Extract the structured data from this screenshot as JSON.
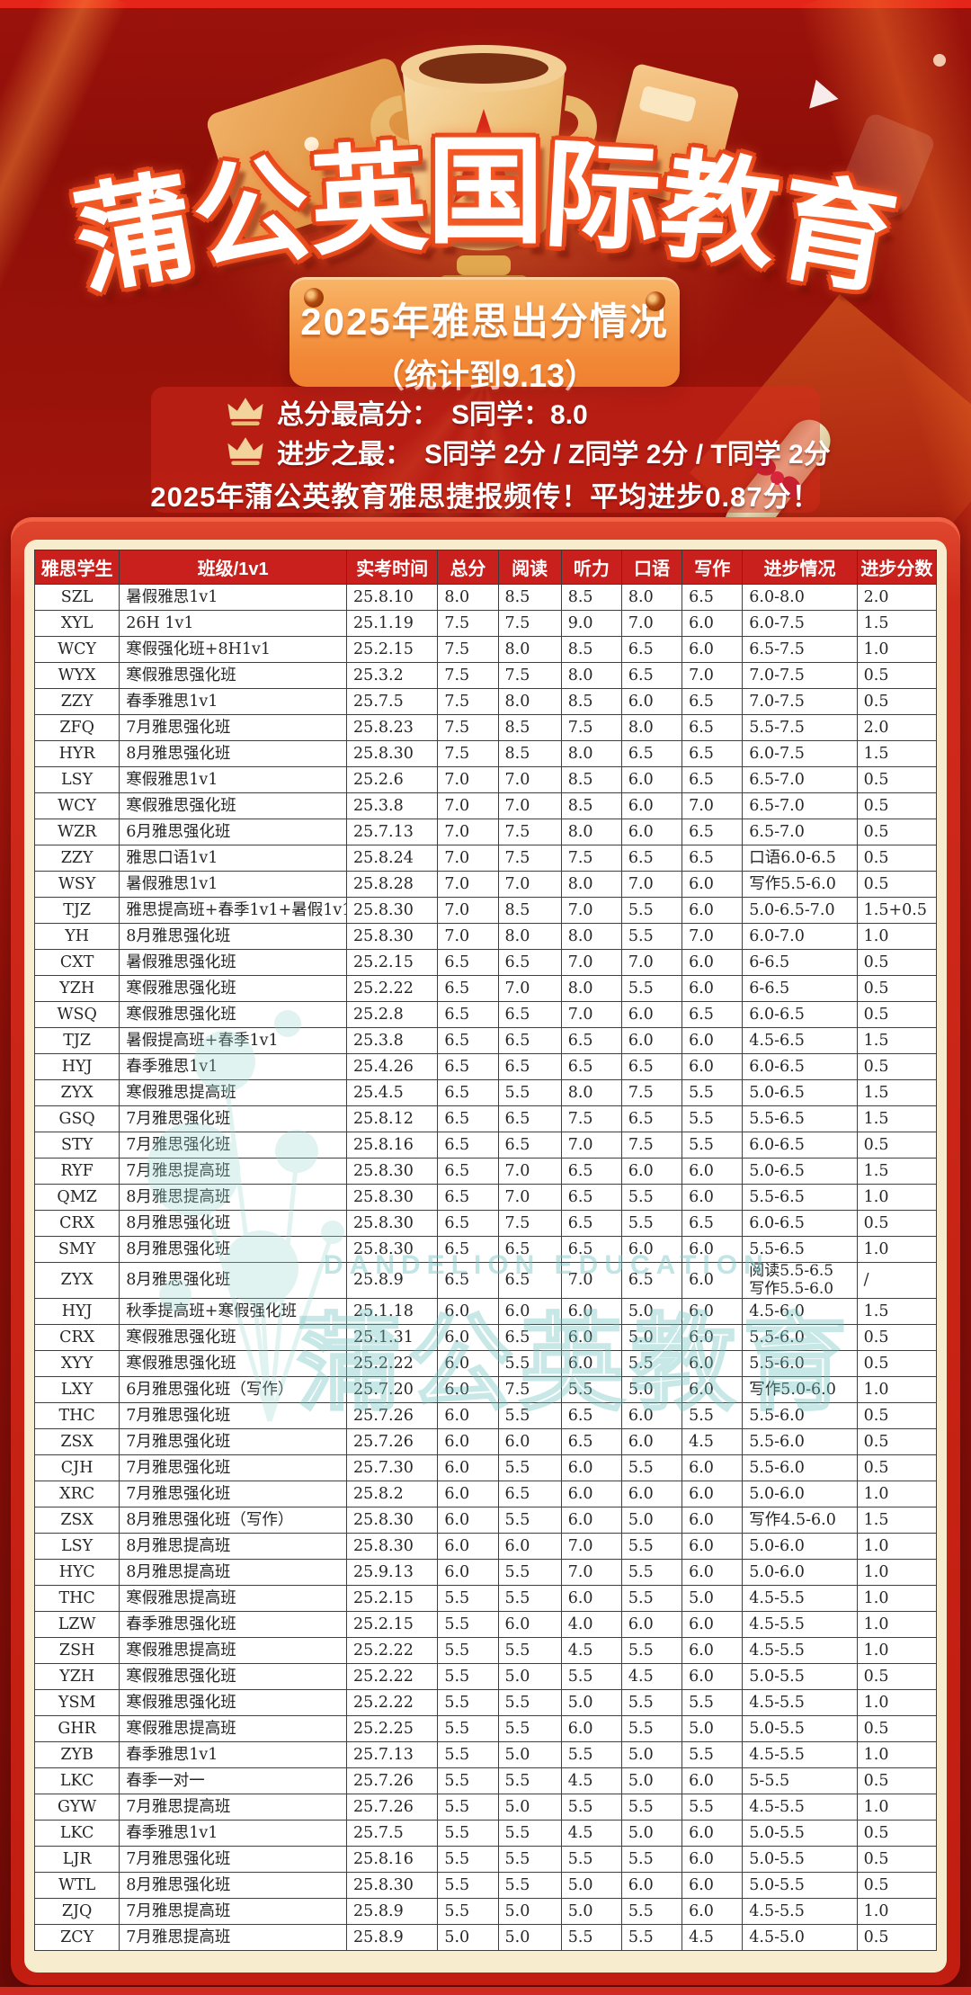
{
  "poster": {
    "brand_title": "蒲公英国际教育",
    "brand_chars": [
      "蒲",
      "公",
      "英",
      "国",
      "际",
      "教",
      "育"
    ],
    "banner": {
      "line1": "2025年雅思出分情况",
      "line2": "（统计到9.13）"
    },
    "highlights": [
      {
        "label": "总分最高分：",
        "value": "S同学：8.0"
      },
      {
        "label": "进步之最：",
        "value": "S同学 2分 / Z同学 2分 / T同学 2分"
      }
    ],
    "summary": "2025年蒲公英教育雅思捷报频传！平均进步0.87分！",
    "watermark": {
      "en": "DANDELION EDUCATION",
      "cn": "蒲公英教育"
    }
  },
  "colors": {
    "background_red": "#9c120c",
    "panel_red": "#c9201d",
    "banner_orange": "#f28a38",
    "card_cream": "#f7ecce",
    "gold": "#f2d39b",
    "watermark_teal": "#76c6c3",
    "text_dark": "#262626"
  },
  "table": {
    "columns": [
      "雅思学生",
      "班级/1v1",
      "实考时间",
      "总分",
      "阅读",
      "听力",
      "口语",
      "写作",
      "进步情况",
      "进步分数"
    ],
    "rows": [
      {
        "student": "SZL",
        "class": "暑假雅思1v1",
        "date": "25.8.10",
        "total": "8.0",
        "reading": "8.5",
        "listening": "8.5",
        "speaking": "8.0",
        "writing": "6.5",
        "progress": "6.0-8.0",
        "gain": "2.0"
      },
      {
        "student": "XYL",
        "class": "26H 1v1",
        "date": "25.1.19",
        "total": "7.5",
        "reading": "7.5",
        "listening": "9.0",
        "speaking": "7.0",
        "writing": "6.0",
        "progress": "6.0-7.5",
        "gain": "1.5"
      },
      {
        "student": "WCY",
        "class": "寒假强化班+8H1v1",
        "date": "25.2.15",
        "total": "7.5",
        "reading": "8.0",
        "listening": "8.5",
        "speaking": "6.5",
        "writing": "6.0",
        "progress": "6.5-7.5",
        "gain": "1.0"
      },
      {
        "student": "WYX",
        "class": "寒假雅思强化班",
        "date": "25.3.2",
        "total": "7.5",
        "reading": "7.5",
        "listening": "8.0",
        "speaking": "6.5",
        "writing": "7.0",
        "progress": "7.0-7.5",
        "gain": "0.5"
      },
      {
        "student": "ZZY",
        "class": "春季雅思1v1",
        "date": "25.7.5",
        "total": "7.5",
        "reading": "8.0",
        "listening": "8.5",
        "speaking": "6.0",
        "writing": "6.5",
        "progress": "7.0-7.5",
        "gain": "0.5"
      },
      {
        "student": "ZFQ",
        "class": "7月雅思强化班",
        "date": "25.8.23",
        "total": "7.5",
        "reading": "8.5",
        "listening": "7.5",
        "speaking": "8.0",
        "writing": "6.5",
        "progress": "5.5-7.5",
        "gain": "2.0"
      },
      {
        "student": "HYR",
        "class": "8月雅思强化班",
        "date": "25.8.30",
        "total": "7.5",
        "reading": "8.5",
        "listening": "8.0",
        "speaking": "6.5",
        "writing": "6.5",
        "progress": "6.0-7.5",
        "gain": "1.5"
      },
      {
        "student": "LSY",
        "class": "寒假雅思1v1",
        "date": "25.2.6",
        "total": "7.0",
        "reading": "7.0",
        "listening": "8.5",
        "speaking": "6.0",
        "writing": "6.5",
        "progress": "6.5-7.0",
        "gain": "0.5"
      },
      {
        "student": "WCY",
        "class": "寒假雅思强化班",
        "date": "25.3.8",
        "total": "7.0",
        "reading": "7.0",
        "listening": "8.5",
        "speaking": "6.0",
        "writing": "7.0",
        "progress": "6.5-7.0",
        "gain": "0.5"
      },
      {
        "student": "WZR",
        "class": "6月雅思强化班",
        "date": "25.7.13",
        "total": "7.0",
        "reading": "7.5",
        "listening": "8.0",
        "speaking": "6.0",
        "writing": "6.5",
        "progress": "6.5-7.0",
        "gain": "0.5"
      },
      {
        "student": "ZZY",
        "class": "雅思口语1v1",
        "date": "25.8.24",
        "total": "7.0",
        "reading": "7.5",
        "listening": "7.5",
        "speaking": "6.5",
        "writing": "6.5",
        "progress": "口语6.0-6.5",
        "gain": "0.5"
      },
      {
        "student": "WSY",
        "class": "暑假雅思1v1",
        "date": "25.8.28",
        "total": "7.0",
        "reading": "7.0",
        "listening": "8.0",
        "speaking": "7.0",
        "writing": "6.0",
        "progress": "写作5.5-6.0",
        "gain": "0.5"
      },
      {
        "student": "TJZ",
        "class": "雅思提高班+春季1v1+暑假1v1",
        "date": "25.8.30",
        "total": "7.0",
        "reading": "8.5",
        "listening": "7.0",
        "speaking": "5.5",
        "writing": "6.0",
        "progress": "5.0-6.5-7.0",
        "gain": "1.5+0.5"
      },
      {
        "student": "YH",
        "class": "8月雅思强化班",
        "date": "25.8.30",
        "total": "7.0",
        "reading": "8.0",
        "listening": "8.0",
        "speaking": "5.5",
        "writing": "7.0",
        "progress": "6.0-7.0",
        "gain": "1.0"
      },
      {
        "student": "CXT",
        "class": "暑假雅思强化班",
        "date": "25.2.15",
        "total": "6.5",
        "reading": "6.5",
        "listening": "7.0",
        "speaking": "7.0",
        "writing": "6.0",
        "progress": "6-6.5",
        "gain": "0.5"
      },
      {
        "student": "YZH",
        "class": "寒假雅思强化班",
        "date": "25.2.22",
        "total": "6.5",
        "reading": "7.0",
        "listening": "8.0",
        "speaking": "5.5",
        "writing": "6.0",
        "progress": "6-6.5",
        "gain": "0.5"
      },
      {
        "student": "WSQ",
        "class": "寒假雅思强化班",
        "date": "25.2.8",
        "total": "6.5",
        "reading": "6.5",
        "listening": "7.0",
        "speaking": "6.0",
        "writing": "6.5",
        "progress": "6.0-6.5",
        "gain": "0.5"
      },
      {
        "student": "TJZ",
        "class": "暑假提高班+春季1v1",
        "date": "25.3.8",
        "total": "6.5",
        "reading": "6.5",
        "listening": "6.5",
        "speaking": "6.0",
        "writing": "6.0",
        "progress": "4.5-6.5",
        "gain": "1.5"
      },
      {
        "student": "HYJ",
        "class": "春季雅思1v1",
        "date": "25.4.26",
        "total": "6.5",
        "reading": "6.5",
        "listening": "6.5",
        "speaking": "6.5",
        "writing": "6.0",
        "progress": "6.0-6.5",
        "gain": "0.5"
      },
      {
        "student": "ZYX",
        "class": "寒假雅思提高班",
        "date": "25.4.5",
        "total": "6.5",
        "reading": "5.5",
        "listening": "8.0",
        "speaking": "7.5",
        "writing": "5.5",
        "progress": "5.0-6.5",
        "gain": "1.5"
      },
      {
        "student": "GSQ",
        "class": "7月雅思强化班",
        "date": "25.8.12",
        "total": "6.5",
        "reading": "6.5",
        "listening": "7.5",
        "speaking": "6.5",
        "writing": "5.5",
        "progress": "5.5-6.5",
        "gain": "1.5"
      },
      {
        "student": "STY",
        "class": "7月雅思强化班",
        "date": "25.8.16",
        "total": "6.5",
        "reading": "6.5",
        "listening": "7.0",
        "speaking": "7.5",
        "writing": "5.5",
        "progress": "6.0-6.5",
        "gain": "0.5"
      },
      {
        "student": "RYF",
        "class": "7月雅思提高班",
        "date": "25.8.30",
        "total": "6.5",
        "reading": "7.0",
        "listening": "6.5",
        "speaking": "6.0",
        "writing": "6.0",
        "progress": "5.0-6.5",
        "gain": "1.5"
      },
      {
        "student": "QMZ",
        "class": "8月雅思提高班",
        "date": "25.8.30",
        "total": "6.5",
        "reading": "7.0",
        "listening": "6.5",
        "speaking": "5.5",
        "writing": "6.0",
        "progress": "5.5-6.5",
        "gain": "1.0"
      },
      {
        "student": "CRX",
        "class": "8月雅思强化班",
        "date": "25.8.30",
        "total": "6.5",
        "reading": "7.5",
        "listening": "6.5",
        "speaking": "5.5",
        "writing": "6.5",
        "progress": "6.0-6.5",
        "gain": "0.5"
      },
      {
        "student": "SMY",
        "class": "8月雅思强化班",
        "date": "25.8.30",
        "total": "6.5",
        "reading": "6.5",
        "listening": "6.5",
        "speaking": "6.0",
        "writing": "6.0",
        "progress": "5.5-6.5",
        "gain": "1.0"
      },
      {
        "student": "ZYX",
        "class": "8月雅思强化班",
        "date": "25.8.9",
        "total": "6.5",
        "reading": "6.5",
        "listening": "7.0",
        "speaking": "6.5",
        "writing": "6.0",
        "progress": "阅读5.5-6.5\n写作5.5-6.0",
        "gain": "/"
      },
      {
        "student": "HYJ",
        "class": "秋季提高班+寒假强化班",
        "date": "25.1.18",
        "total": "6.0",
        "reading": "6.0",
        "listening": "6.0",
        "speaking": "5.0",
        "writing": "6.0",
        "progress": "4.5-6.0",
        "gain": "1.5"
      },
      {
        "student": "CRX",
        "class": "寒假雅思强化班",
        "date": "25.1.31",
        "total": "6.0",
        "reading": "6.5",
        "listening": "6.0",
        "speaking": "5.0",
        "writing": "6.0",
        "progress": "5.5-6.0",
        "gain": "0.5"
      },
      {
        "student": "XYY",
        "class": "寒假雅思强化班",
        "date": "25.2.22",
        "total": "6.0",
        "reading": "5.5",
        "listening": "6.0",
        "speaking": "5.5",
        "writing": "6.0",
        "progress": "5.5-6.0",
        "gain": "0.5"
      },
      {
        "student": "LXY",
        "class": "6月雅思强化班（写作）",
        "date": "25.7.20",
        "total": "6.0",
        "reading": "7.5",
        "listening": "5.5",
        "speaking": "5.0",
        "writing": "6.0",
        "progress": "写作5.0-6.0",
        "gain": "1.0"
      },
      {
        "student": "THC",
        "class": "7月雅思强化班",
        "date": "25.7.26",
        "total": "6.0",
        "reading": "5.5",
        "listening": "6.5",
        "speaking": "6.0",
        "writing": "5.5",
        "progress": "5.5-6.0",
        "gain": "0.5"
      },
      {
        "student": "ZSX",
        "class": "7月雅思强化班",
        "date": "25.7.26",
        "total": "6.0",
        "reading": "6.0",
        "listening": "6.5",
        "speaking": "6.0",
        "writing": "4.5",
        "progress": "5.5-6.0",
        "gain": "0.5"
      },
      {
        "student": "CJH",
        "class": "7月雅思强化班",
        "date": "25.7.30",
        "total": "6.0",
        "reading": "5.5",
        "listening": "6.0",
        "speaking": "5.5",
        "writing": "6.0",
        "progress": "5.5-6.0",
        "gain": "0.5"
      },
      {
        "student": "XRC",
        "class": "7月雅思强化班",
        "date": "25.8.2",
        "total": "6.0",
        "reading": "6.5",
        "listening": "6.0",
        "speaking": "6.0",
        "writing": "6.0",
        "progress": "5.0-6.0",
        "gain": "1.0"
      },
      {
        "student": "ZSX",
        "class": "8月雅思强化班（写作）",
        "date": "25.8.30",
        "total": "6.0",
        "reading": "5.5",
        "listening": "6.0",
        "speaking": "5.0",
        "writing": "6.0",
        "progress": "写作4.5-6.0",
        "gain": "1.5"
      },
      {
        "student": "LSY",
        "class": "8月雅思提高班",
        "date": "25.8.30",
        "total": "6.0",
        "reading": "6.0",
        "listening": "7.0",
        "speaking": "5.5",
        "writing": "6.0",
        "progress": "5.0-6.0",
        "gain": "1.0"
      },
      {
        "student": "HYC",
        "class": "8月雅思提高班",
        "date": "25.9.13",
        "total": "6.0",
        "reading": "5.5",
        "listening": "7.0",
        "speaking": "5.5",
        "writing": "6.0",
        "progress": "5.0-6.0",
        "gain": "1.0"
      },
      {
        "student": "THC",
        "class": "寒假雅思提高班",
        "date": "25.2.15",
        "total": "5.5",
        "reading": "5.5",
        "listening": "6.0",
        "speaking": "5.5",
        "writing": "5.0",
        "progress": "4.5-5.5",
        "gain": "1.0"
      },
      {
        "student": "LZW",
        "class": "春季雅思强化班",
        "date": "25.2.15",
        "total": "5.5",
        "reading": "6.0",
        "listening": "4.0",
        "speaking": "6.0",
        "writing": "6.0",
        "progress": "4.5-5.5",
        "gain": "1.0"
      },
      {
        "student": "ZSH",
        "class": "寒假雅思提高班",
        "date": "25.2.22",
        "total": "5.5",
        "reading": "5.5",
        "listening": "4.5",
        "speaking": "5.5",
        "writing": "6.0",
        "progress": "4.5-5.5",
        "gain": "1.0"
      },
      {
        "student": "YZH",
        "class": "寒假雅思强化班",
        "date": "25.2.22",
        "total": "5.5",
        "reading": "5.0",
        "listening": "5.5",
        "speaking": "4.5",
        "writing": "6.0",
        "progress": "5.0-5.5",
        "gain": "0.5"
      },
      {
        "student": "YSM",
        "class": "寒假雅思强化班",
        "date": "25.2.22",
        "total": "5.5",
        "reading": "5.5",
        "listening": "5.0",
        "speaking": "5.5",
        "writing": "5.5",
        "progress": "4.5-5.5",
        "gain": "1.0"
      },
      {
        "student": "GHR",
        "class": "寒假雅思提高班",
        "date": "25.2.25",
        "total": "5.5",
        "reading": "5.5",
        "listening": "6.0",
        "speaking": "5.5",
        "writing": "5.0",
        "progress": "5.0-5.5",
        "gain": "0.5"
      },
      {
        "student": "ZYB",
        "class": "春季雅思1v1",
        "date": "25.7.13",
        "total": "5.5",
        "reading": "5.0",
        "listening": "5.5",
        "speaking": "5.0",
        "writing": "5.5",
        "progress": "4.5-5.5",
        "gain": "1.0"
      },
      {
        "student": "LKC",
        "class": "春季一对一",
        "date": "25.7.26",
        "total": "5.5",
        "reading": "5.5",
        "listening": "4.5",
        "speaking": "5.0",
        "writing": "6.0",
        "progress": "5-5.5",
        "gain": "0.5"
      },
      {
        "student": "GYW",
        "class": "7月雅思提高班",
        "date": "25.7.26",
        "total": "5.5",
        "reading": "5.0",
        "listening": "5.5",
        "speaking": "5.5",
        "writing": "5.5",
        "progress": "4.5-5.5",
        "gain": "1.0"
      },
      {
        "student": "LKC",
        "class": "春季雅思1v1",
        "date": "25.7.5",
        "total": "5.5",
        "reading": "5.5",
        "listening": "4.5",
        "speaking": "5.0",
        "writing": "6.0",
        "progress": "5.0-5.5",
        "gain": "0.5"
      },
      {
        "student": "LJR",
        "class": "7月雅思强化班",
        "date": "25.8.16",
        "total": "5.5",
        "reading": "5.5",
        "listening": "5.5",
        "speaking": "5.5",
        "writing": "6.0",
        "progress": "5.0-5.5",
        "gain": "0.5"
      },
      {
        "student": "WTL",
        "class": "8月雅思强化班",
        "date": "25.8.30",
        "total": "5.5",
        "reading": "5.5",
        "listening": "5.0",
        "speaking": "6.0",
        "writing": "6.0",
        "progress": "5.0-5.5",
        "gain": "0.5"
      },
      {
        "student": "ZJQ",
        "class": "7月雅思提高班",
        "date": "25.8.9",
        "total": "5.5",
        "reading": "5.0",
        "listening": "5.0",
        "speaking": "5.5",
        "writing": "6.0",
        "progress": "4.5-5.5",
        "gain": "1.0"
      },
      {
        "student": "ZCY",
        "class": "7月雅思提高班",
        "date": "25.8.9",
        "total": "5.0",
        "reading": "5.0",
        "listening": "5.5",
        "speaking": "5.5",
        "writing": "4.5",
        "progress": "4.5-5.0",
        "gain": "0.5"
      }
    ]
  }
}
